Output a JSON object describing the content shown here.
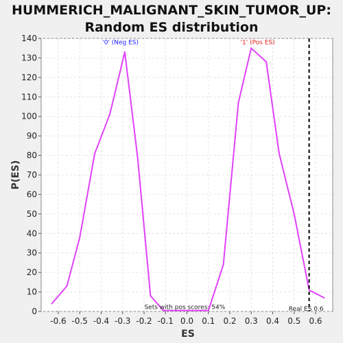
{
  "chart_data": {
    "type": "line",
    "title_line1": "HUMMERICH_MALIGNANT_SKIN_TUMOR_UP:",
    "title_line2": "Random ES distribution",
    "xlabel": "ES",
    "ylabel": "P(ES)",
    "xlim": [
      -0.68,
      0.68
    ],
    "ylim": [
      0,
      140
    ],
    "xticks": [
      -0.6,
      -0.5,
      -0.4,
      -0.3,
      -0.2,
      -0.1,
      0.0,
      0.1,
      0.2,
      0.3,
      0.4,
      0.5,
      0.6
    ],
    "xtick_labels": [
      "-0.6",
      "-0.5",
      "-0.4",
      "-0.3",
      "-0.2",
      "-0.1",
      "0.0",
      "0.1",
      "0.2",
      "0.3",
      "0.4",
      "0.5",
      "0.6"
    ],
    "yticks": [
      0,
      10,
      20,
      30,
      40,
      50,
      60,
      70,
      80,
      90,
      100,
      110,
      120,
      130,
      140
    ],
    "grid": true,
    "series": [
      {
        "color": "#e040fb",
        "x": [
          -0.63,
          -0.56,
          -0.5,
          -0.43,
          -0.36,
          -0.29,
          -0.23,
          -0.17,
          -0.11,
          -0.04,
          0.03,
          0.1,
          0.17,
          0.24,
          0.3,
          0.37,
          0.43,
          0.5,
          0.57,
          0.64
        ],
        "y": [
          4,
          13,
          38,
          81,
          101,
          133,
          79,
          8,
          0.5,
          0.5,
          0.5,
          0.5,
          24,
          107,
          135,
          128,
          81,
          50,
          11,
          7
        ]
      }
    ],
    "real_es_line": {
      "x": 0.57,
      "label": "Real ES 0.6"
    },
    "annotations": [
      {
        "text": "'0' (Neg ES)",
        "x": -0.31,
        "y": 137,
        "color": "#1a1aff"
      },
      {
        "text": "'1' (Pos ES)",
        "x": 0.33,
        "y": 137,
        "color": "#e0201a"
      },
      {
        "text": "Sets with pos scores: 54%",
        "x": -0.01,
        "y": 1.2,
        "color": "#222222"
      }
    ]
  }
}
